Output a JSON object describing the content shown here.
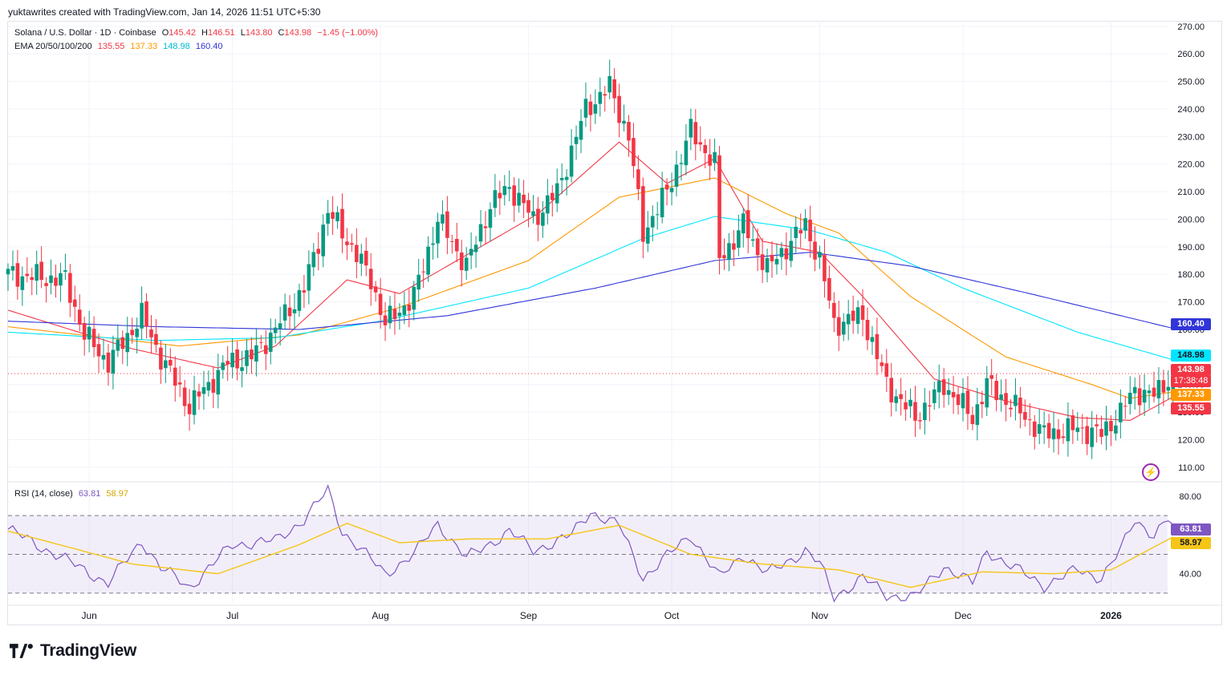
{
  "header": {
    "credit": "yuktawrites created with TradingView.com, Jan 14, 2026 11:51 UTC+5:30"
  },
  "legend": {
    "symbol": "Solana / U.S. Dollar · 1D · Coinbase",
    "o_label": "O",
    "o": "145.42",
    "h_label": "H",
    "h": "146.51",
    "l_label": "L",
    "l": "143.80",
    "c_label": "C",
    "c": "143.98",
    "change": "−1.45 (−1.00%)",
    "ema_label": "EMA 20/50/100/200",
    "ema20": "135.55",
    "ema50": "137.33",
    "ema100": "148.98",
    "ema200": "160.40",
    "rsi_label": "RSI (14, close)",
    "rsi": "63.81",
    "rsi_ma": "58.97"
  },
  "badges": {
    "ema200": "160.40",
    "ema100": "148.98",
    "price": "143.98",
    "countdown": "17:38:48",
    "ema50": "137.33",
    "ema20": "135.55",
    "rsi": "63.81",
    "rsi_ma": "58.97"
  },
  "brand": {
    "name": "TradingView"
  },
  "colors": {
    "up": "#089981",
    "down": "#f23645",
    "ema20": "#f23645",
    "ema50": "#ff9800",
    "ema100": "#00e5ff",
    "ema200": "#3135d8",
    "rsi": "#7e57c2",
    "rsi_ma": "#f5c518",
    "last_price_line": "#f23645"
  },
  "chart_data": [
    {
      "type": "candlestick",
      "title": "Solana / U.S. Dollar · 1D · Coinbase",
      "ylim": [
        105,
        272
      ],
      "y_ticks": [
        110,
        120,
        130,
        140,
        150,
        160,
        170,
        180,
        190,
        200,
        210,
        220,
        230,
        240,
        250,
        260,
        270
      ],
      "x_ticks": [
        "Jun",
        "Jul",
        "Aug",
        "Sep",
        "Oct",
        "Nov",
        "Dec",
        "2026"
      ],
      "grid": true,
      "last_price": 143.98,
      "close_path_anchors": [
        {
          "date": "May 15",
          "close": 180
        },
        {
          "date": "May 27",
          "close": 178
        },
        {
          "date": "May 31",
          "close": 158
        },
        {
          "date": "Jun 5",
          "close": 148
        },
        {
          "date": "Jun 12",
          "close": 165
        },
        {
          "date": "Jun 16",
          "close": 150
        },
        {
          "date": "Jun 22",
          "close": 132
        },
        {
          "date": "Jun 30",
          "close": 148
        },
        {
          "date": "Jul 5",
          "close": 150
        },
        {
          "date": "Jul 10",
          "close": 160
        },
        {
          "date": "Jul 16",
          "close": 175
        },
        {
          "date": "Jul 21",
          "close": 203
        },
        {
          "date": "Jul 26",
          "close": 190
        },
        {
          "date": "Jul 30",
          "close": 178
        },
        {
          "date": "Aug 2",
          "close": 162
        },
        {
          "date": "Aug 8",
          "close": 172
        },
        {
          "date": "Aug 13",
          "close": 200
        },
        {
          "date": "Aug 19",
          "close": 183
        },
        {
          "date": "Aug 24",
          "close": 205
        },
        {
          "date": "Aug 28",
          "close": 212
        },
        {
          "date": "Sep 2",
          "close": 200
        },
        {
          "date": "Sep 7",
          "close": 210
        },
        {
          "date": "Sep 13",
          "close": 240
        },
        {
          "date": "Sep 18",
          "close": 248
        },
        {
          "date": "Sep 22",
          "close": 230
        },
        {
          "date": "Sep 25",
          "close": 195
        },
        {
          "date": "Sep 30",
          "close": 210
        },
        {
          "date": "Oct 5",
          "close": 232
        },
        {
          "date": "Oct 10",
          "close": 220
        },
        {
          "date": "Oct 11",
          "close": 185
        },
        {
          "date": "Oct 16",
          "close": 198
        },
        {
          "date": "Oct 21",
          "close": 182
        },
        {
          "date": "Oct 25",
          "close": 190
        },
        {
          "date": "Oct 29",
          "close": 198
        },
        {
          "date": "Nov 1",
          "close": 185
        },
        {
          "date": "Nov 4",
          "close": 162
        },
        {
          "date": "Nov 10",
          "close": 165
        },
        {
          "date": "Nov 15",
          "close": 140
        },
        {
          "date": "Nov 21",
          "close": 128
        },
        {
          "date": "Nov 27",
          "close": 140
        },
        {
          "date": "Dec 3",
          "close": 128
        },
        {
          "date": "Dec 6",
          "close": 140
        },
        {
          "date": "Dec 11",
          "close": 133
        },
        {
          "date": "Dec 18",
          "close": 122
        },
        {
          "date": "Dec 25",
          "close": 124
        },
        {
          "date": "Dec 30",
          "close": 122
        },
        {
          "date": "Jan 3",
          "close": 130
        },
        {
          "date": "Jan 6",
          "close": 138
        },
        {
          "date": "Jan 10",
          "close": 136
        },
        {
          "date": "Jan 14",
          "close": 143.98
        }
      ],
      "series": [
        {
          "name": "EMA 20",
          "last": 135.55,
          "anchors": [
            {
              "date": "May 15",
              "value": 167
            },
            {
              "date": "Jun 10",
              "value": 153
            },
            {
              "date": "Jun 28",
              "value": 146
            },
            {
              "date": "Jul 10",
              "value": 154
            },
            {
              "date": "Jul 25",
              "value": 178
            },
            {
              "date": "Aug 5",
              "value": 173
            },
            {
              "date": "Aug 20",
              "value": 188
            },
            {
              "date": "Sep 3",
              "value": 202
            },
            {
              "date": "Sep 20",
              "value": 228
            },
            {
              "date": "Sep 30",
              "value": 213
            },
            {
              "date": "Oct 10",
              "value": 222
            },
            {
              "date": "Oct 20",
              "value": 192
            },
            {
              "date": "Nov 1",
              "value": 188
            },
            {
              "date": "Nov 10",
              "value": 172
            },
            {
              "date": "Nov 25",
              "value": 142
            },
            {
              "date": "Dec 10",
              "value": 134
            },
            {
              "date": "Dec 25",
              "value": 128
            },
            {
              "date": "Jan 5",
              "value": 127
            },
            {
              "date": "Jan 14",
              "value": 135.55
            }
          ]
        },
        {
          "name": "EMA 50",
          "last": 137.33,
          "anchors": [
            {
              "date": "May 15",
              "value": 161
            },
            {
              "date": "Jun 20",
              "value": 154
            },
            {
              "date": "Jul 15",
              "value": 158
            },
            {
              "date": "Aug 5",
              "value": 168
            },
            {
              "date": "Sep 1",
              "value": 185
            },
            {
              "date": "Sep 20",
              "value": 208
            },
            {
              "date": "Oct 10",
              "value": 215
            },
            {
              "date": "Oct 25",
              "value": 202
            },
            {
              "date": "Nov 5",
              "value": 195
            },
            {
              "date": "Nov 20",
              "value": 172
            },
            {
              "date": "Dec 10",
              "value": 150
            },
            {
              "date": "Dec 28",
              "value": 140
            },
            {
              "date": "Jan 5",
              "value": 135
            },
            {
              "date": "Jan 14",
              "value": 137.33
            }
          ]
        },
        {
          "name": "EMA 100",
          "last": 148.98,
          "anchors": [
            {
              "date": "May 15",
              "value": 159
            },
            {
              "date": "Jun 15",
              "value": 156
            },
            {
              "date": "Jul 10",
              "value": 157
            },
            {
              "date": "Aug 1",
              "value": 163
            },
            {
              "date": "Sep 1",
              "value": 175
            },
            {
              "date": "Sep 25",
              "value": 193
            },
            {
              "date": "Oct 10",
              "value": 201
            },
            {
              "date": "Oct 30",
              "value": 196
            },
            {
              "date": "Nov 15",
              "value": 188
            },
            {
              "date": "Dec 1",
              "value": 175
            },
            {
              "date": "Dec 25",
              "value": 159
            },
            {
              "date": "Jan 14",
              "value": 148.98
            }
          ]
        },
        {
          "name": "EMA 200",
          "last": 160.4,
          "anchors": [
            {
              "date": "May 15",
              "value": 163
            },
            {
              "date": "Jun 15",
              "value": 161
            },
            {
              "date": "Jul 15",
              "value": 160
            },
            {
              "date": "Aug 15",
              "value": 165
            },
            {
              "date": "Sep 15",
              "value": 175
            },
            {
              "date": "Oct 10",
              "value": 185
            },
            {
              "date": "Oct 30",
              "value": 188
            },
            {
              "date": "Nov 20",
              "value": 183
            },
            {
              "date": "Dec 15",
              "value": 173
            },
            {
              "date": "Jan 14",
              "value": 160.4
            }
          ]
        }
      ]
    },
    {
      "type": "line",
      "title": "RSI (14, close)",
      "ylim": [
        25,
        87
      ],
      "y_ticks": [
        40,
        80
      ],
      "bands": [
        30,
        50,
        70
      ],
      "series": [
        {
          "name": "RSI",
          "last": 63.81,
          "anchors": [
            {
              "date": "May 15",
              "value": 63
            },
            {
              "date": "May 31",
              "value": 42
            },
            {
              "date": "Jun 5",
              "value": 35
            },
            {
              "date": "Jun 12",
              "value": 57
            },
            {
              "date": "Jun 16",
              "value": 43
            },
            {
              "date": "Jun 22",
              "value": 33
            },
            {
              "date": "Jul 1",
              "value": 55
            },
            {
              "date": "Jul 10",
              "value": 57
            },
            {
              "date": "Jul 16",
              "value": 68
            },
            {
              "date": "Jul 21",
              "value": 83
            },
            {
              "date": "Jul 24",
              "value": 62
            },
            {
              "date": "Aug 2",
              "value": 40
            },
            {
              "date": "Aug 8",
              "value": 50
            },
            {
              "date": "Aug 13",
              "value": 66
            },
            {
              "date": "Aug 19",
              "value": 48
            },
            {
              "date": "Aug 28",
              "value": 62
            },
            {
              "date": "Sep 2",
              "value": 52
            },
            {
              "date": "Sep 10",
              "value": 60
            },
            {
              "date": "Sep 14",
              "value": 72
            },
            {
              "date": "Sep 20",
              "value": 65
            },
            {
              "date": "Sep 25",
              "value": 38
            },
            {
              "date": "Oct 5",
              "value": 60
            },
            {
              "date": "Oct 11",
              "value": 38
            },
            {
              "date": "Oct 16",
              "value": 50
            },
            {
              "date": "Oct 21",
              "value": 40
            },
            {
              "date": "Oct 29",
              "value": 52
            },
            {
              "date": "Nov 1",
              "value": 45
            },
            {
              "date": "Nov 4",
              "value": 28
            },
            {
              "date": "Nov 10",
              "value": 38
            },
            {
              "date": "Nov 15",
              "value": 29
            },
            {
              "date": "Nov 21",
              "value": 28
            },
            {
              "date": "Nov 27",
              "value": 44
            },
            {
              "date": "Dec 3",
              "value": 35
            },
            {
              "date": "Dec 6",
              "value": 52
            },
            {
              "date": "Dec 11",
              "value": 44
            },
            {
              "date": "Dec 18",
              "value": 34
            },
            {
              "date": "Dec 25",
              "value": 42
            },
            {
              "date": "Dec 30",
              "value": 38
            },
            {
              "date": "Jan 3",
              "value": 52
            },
            {
              "date": "Jan 6",
              "value": 68
            },
            {
              "date": "Jan 10",
              "value": 60
            },
            {
              "date": "Jan 13",
              "value": 68
            },
            {
              "date": "Jan 14",
              "value": 63.81
            }
          ]
        },
        {
          "name": "RSI-based MA",
          "last": 58.97,
          "anchors": [
            {
              "date": "May 15",
              "value": 62
            },
            {
              "date": "Jun 10",
              "value": 45
            },
            {
              "date": "Jun 28",
              "value": 40
            },
            {
              "date": "Jul 15",
              "value": 55
            },
            {
              "date": "Jul 25",
              "value": 66
            },
            {
              "date": "Aug 5",
              "value": 56
            },
            {
              "date": "Aug 20",
              "value": 58
            },
            {
              "date": "Sep 5",
              "value": 58
            },
            {
              "date": "Sep 20",
              "value": 65
            },
            {
              "date": "Oct 5",
              "value": 50
            },
            {
              "date": "Oct 20",
              "value": 45
            },
            {
              "date": "Nov 5",
              "value": 42
            },
            {
              "date": "Nov 20",
              "value": 33
            },
            {
              "date": "Dec 5",
              "value": 41
            },
            {
              "date": "Dec 20",
              "value": 40
            },
            {
              "date": "Jan 1",
              "value": 42
            },
            {
              "date": "Jan 14",
              "value": 58.97
            }
          ]
        }
      ]
    }
  ]
}
